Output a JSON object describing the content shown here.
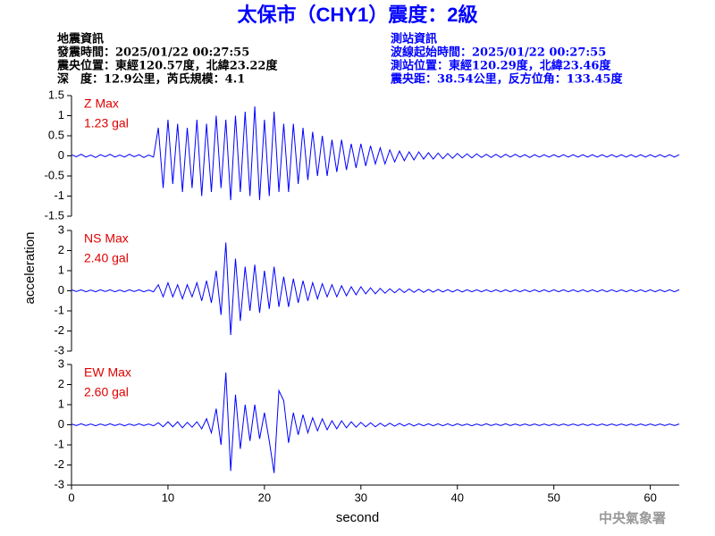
{
  "title": "太保市（CHY1）震度：2級",
  "header": {
    "left": [
      "地震資訊",
      "發震時間：2025/01/22 00:27:55",
      "震央位置：東經120.57度，北緯23.22度",
      "深　度：12.9公里，芮氏規模：4.1"
    ],
    "right": [
      "測站資訊",
      "波線起始時間：2025/01/22 00:27:55",
      "測站位置：東經120.29度，北緯23.46度",
      "震央距：38.54公里，反方位角：133.45度"
    ]
  },
  "y_label": "acceleration",
  "x_label": "second",
  "footer": "中央氣象署",
  "chart_data": [
    {
      "type": "line",
      "annotations": [
        "Z Max",
        "1.23 gal"
      ],
      "xlim": [
        0,
        63
      ],
      "ylim": [
        -1.5,
        1.5
      ],
      "yticks": [
        -1.5,
        -1,
        -0.5,
        0,
        0.5,
        1,
        1.5
      ],
      "x": [
        0,
        0.5,
        1,
        1.5,
        2,
        2.5,
        3,
        3.5,
        4,
        4.5,
        5,
        5.5,
        6,
        6.5,
        7,
        7.5,
        8,
        8.5,
        9,
        9.5,
        10,
        10.5,
        11,
        11.5,
        12,
        12.5,
        13,
        13.5,
        14,
        14.5,
        15,
        15.5,
        16,
        16.5,
        17,
        17.5,
        18,
        18.5,
        19,
        19.5,
        20,
        20.5,
        21,
        21.5,
        22,
        22.5,
        23,
        23.5,
        24,
        24.5,
        25,
        25.5,
        26,
        26.5,
        27,
        27.5,
        28,
        28.5,
        29,
        29.5,
        30,
        30.5,
        31,
        31.5,
        32,
        32.5,
        33,
        33.5,
        34,
        34.5,
        35,
        35.5,
        36,
        36.5,
        37,
        37.5,
        38,
        38.5,
        39,
        39.5,
        40,
        40.5,
        41,
        41.5,
        42,
        42.5,
        43,
        43.5,
        44,
        44.5,
        45,
        45.5,
        46,
        46.5,
        47,
        47.5,
        48,
        48.5,
        49,
        49.5,
        50,
        50.5,
        51,
        51.5,
        52,
        52.5,
        53,
        53.5,
        54,
        54.5,
        55,
        55.5,
        56,
        56.5,
        57,
        57.5,
        58,
        58.5,
        59,
        59.5,
        60,
        60.5,
        61,
        61.5,
        62,
        62.5,
        63
      ],
      "series": [
        {
          "color": "#0000ff",
          "values": [
            0.03,
            -0.02,
            0.04,
            -0.03,
            0.02,
            -0.04,
            0.03,
            -0.02,
            0.04,
            -0.03,
            0.02,
            -0.03,
            0.04,
            -0.02,
            0.03,
            -0.04,
            0.02,
            -0.03,
            0.7,
            -0.8,
            0.9,
            -0.7,
            0.8,
            -0.9,
            0.7,
            -0.8,
            0.9,
            -1.0,
            0.8,
            -0.9,
            1.0,
            -0.8,
            0.9,
            -1.1,
            1.0,
            -0.9,
            1.1,
            -1.0,
            1.23,
            -1.1,
            0.9,
            -1.0,
            1.1,
            -0.9,
            0.8,
            -0.9,
            0.8,
            -0.7,
            0.7,
            -0.6,
            0.6,
            -0.5,
            0.5,
            -0.5,
            0.4,
            -0.4,
            0.4,
            -0.35,
            0.3,
            -0.3,
            0.3,
            -0.25,
            0.25,
            -0.2,
            0.2,
            -0.2,
            0.15,
            -0.15,
            0.12,
            -0.12,
            0.1,
            -0.1,
            0.1,
            -0.08,
            0.08,
            -0.08,
            0.07,
            -0.07,
            0.06,
            -0.06,
            0.06,
            -0.05,
            0.05,
            -0.05,
            0.05,
            -0.04,
            0.04,
            -0.04,
            0.04,
            -0.04,
            0.04,
            -0.03,
            0.04,
            -0.03,
            0.03,
            -0.04,
            0.03,
            -0.03,
            0.03,
            -0.03,
            0.03,
            -0.03,
            0.03,
            -0.03,
            0.03,
            -0.03,
            0.03,
            -0.03,
            0.03,
            -0.03,
            0.03,
            -0.03,
            0.03,
            -0.03,
            0.03,
            -0.03,
            0.03,
            -0.03,
            0.03,
            -0.03,
            0.03,
            -0.03,
            0.03,
            -0.03,
            0.03,
            -0.03,
            0.03
          ]
        }
      ]
    },
    {
      "type": "line",
      "annotations": [
        "NS Max",
        "2.40 gal"
      ],
      "xlim": [
        0,
        63
      ],
      "ylim": [
        -3,
        3
      ],
      "yticks": [
        -3,
        -2,
        -1,
        0,
        1,
        2,
        3
      ],
      "x": [
        0,
        0.5,
        1,
        1.5,
        2,
        2.5,
        3,
        3.5,
        4,
        4.5,
        5,
        5.5,
        6,
        6.5,
        7,
        7.5,
        8,
        8.5,
        9,
        9.5,
        10,
        10.5,
        11,
        11.5,
        12,
        12.5,
        13,
        13.5,
        14,
        14.5,
        15,
        15.5,
        16,
        16.5,
        17,
        17.5,
        18,
        18.5,
        19,
        19.5,
        20,
        20.5,
        21,
        21.5,
        22,
        22.5,
        23,
        23.5,
        24,
        24.5,
        25,
        25.5,
        26,
        26.5,
        27,
        27.5,
        28,
        28.5,
        29,
        29.5,
        30,
        30.5,
        31,
        31.5,
        32,
        32.5,
        33,
        33.5,
        34,
        34.5,
        35,
        35.5,
        36,
        36.5,
        37,
        37.5,
        38,
        38.5,
        39,
        39.5,
        40,
        40.5,
        41,
        41.5,
        42,
        42.5,
        43,
        43.5,
        44,
        44.5,
        45,
        45.5,
        46,
        46.5,
        47,
        47.5,
        48,
        48.5,
        49,
        49.5,
        50,
        50.5,
        51,
        51.5,
        52,
        52.5,
        53,
        53.5,
        54,
        54.5,
        55,
        55.5,
        56,
        56.5,
        57,
        57.5,
        58,
        58.5,
        59,
        59.5,
        60,
        60.5,
        61,
        61.5,
        62,
        62.5,
        63
      ],
      "series": [
        {
          "color": "#0000ff",
          "values": [
            0.05,
            -0.04,
            0.05,
            -0.05,
            0.04,
            -0.05,
            0.05,
            -0.04,
            0.05,
            -0.05,
            0.04,
            -0.05,
            0.05,
            -0.04,
            0.05,
            -0.05,
            0.04,
            -0.05,
            0.3,
            -0.3,
            0.4,
            -0.3,
            0.3,
            -0.4,
            0.3,
            -0.3,
            0.4,
            -0.5,
            0.5,
            -0.6,
            1.0,
            -1.2,
            2.4,
            -2.2,
            1.6,
            -1.5,
            1.2,
            -1.0,
            1.3,
            -1.1,
            1.0,
            -0.9,
            1.2,
            -0.8,
            0.7,
            -0.8,
            0.6,
            -0.6,
            0.5,
            -0.5,
            0.4,
            -0.4,
            0.35,
            -0.3,
            0.3,
            -0.3,
            0.25,
            -0.25,
            0.2,
            -0.2,
            0.2,
            -0.15,
            0.15,
            -0.15,
            0.12,
            -0.12,
            0.1,
            -0.1,
            0.1,
            -0.09,
            0.09,
            -0.08,
            0.08,
            -0.08,
            0.07,
            -0.07,
            0.07,
            -0.06,
            0.06,
            -0.06,
            0.06,
            -0.06,
            0.05,
            -0.05,
            0.05,
            -0.05,
            0.05,
            -0.05,
            0.05,
            -0.05,
            0.05,
            -0.05,
            0.05,
            -0.05,
            0.05,
            -0.05,
            0.05,
            -0.05,
            0.05,
            -0.05,
            0.05,
            -0.05,
            0.05,
            -0.05,
            0.05,
            -0.05,
            0.05,
            -0.05,
            0.05,
            -0.05,
            0.05,
            -0.05,
            0.05,
            -0.05,
            0.05,
            -0.05,
            0.05,
            -0.05,
            0.05,
            -0.05,
            0.05,
            -0.05,
            0.05,
            -0.05,
            0.05,
            -0.05,
            0.05
          ]
        }
      ]
    },
    {
      "type": "line",
      "annotations": [
        "EW Max",
        "2.60 gal"
      ],
      "xlim": [
        0,
        63
      ],
      "ylim": [
        -3,
        3
      ],
      "yticks": [
        -3,
        -2,
        -1,
        0,
        1,
        2,
        3
      ],
      "xticks": [
        0,
        10,
        20,
        30,
        40,
        50,
        60
      ],
      "x": [
        0,
        0.5,
        1,
        1.5,
        2,
        2.5,
        3,
        3.5,
        4,
        4.5,
        5,
        5.5,
        6,
        6.5,
        7,
        7.5,
        8,
        8.5,
        9,
        9.5,
        10,
        10.5,
        11,
        11.5,
        12,
        12.5,
        13,
        13.5,
        14,
        14.5,
        15,
        15.5,
        16,
        16.5,
        17,
        17.5,
        18,
        18.5,
        19,
        19.5,
        20,
        20.5,
        21,
        21.5,
        22,
        22.5,
        23,
        23.5,
        24,
        24.5,
        25,
        25.5,
        26,
        26.5,
        27,
        27.5,
        28,
        28.5,
        29,
        29.5,
        30,
        30.5,
        31,
        31.5,
        32,
        32.5,
        33,
        33.5,
        34,
        34.5,
        35,
        35.5,
        36,
        36.5,
        37,
        37.5,
        38,
        38.5,
        39,
        39.5,
        40,
        40.5,
        41,
        41.5,
        42,
        42.5,
        43,
        43.5,
        44,
        44.5,
        45,
        45.5,
        46,
        46.5,
        47,
        47.5,
        48,
        48.5,
        49,
        49.5,
        50,
        50.5,
        51,
        51.5,
        52,
        52.5,
        53,
        53.5,
        54,
        54.5,
        55,
        55.5,
        56,
        56.5,
        57,
        57.5,
        58,
        58.5,
        59,
        59.5,
        60,
        60.5,
        61,
        61.5,
        62,
        62.5,
        63
      ],
      "series": [
        {
          "color": "#0000ff",
          "values": [
            0.04,
            -0.04,
            0.05,
            -0.04,
            0.04,
            -0.05,
            0.04,
            -0.04,
            0.05,
            -0.04,
            0.04,
            -0.05,
            0.04,
            -0.04,
            0.05,
            -0.04,
            0.04,
            -0.05,
            0.1,
            -0.1,
            0.15,
            -0.1,
            0.15,
            -0.15,
            0.12,
            -0.12,
            0.15,
            -0.2,
            0.3,
            -0.4,
            0.8,
            -1.0,
            2.6,
            -2.3,
            1.5,
            -1.2,
            1.0,
            -0.8,
            1.0,
            -0.7,
            0.6,
            -0.8,
            -2.4,
            1.7,
            1.2,
            -0.9,
            0.6,
            -0.5,
            0.5,
            -0.4,
            0.35,
            -0.3,
            0.3,
            -0.25,
            0.2,
            -0.2,
            0.2,
            -0.15,
            0.15,
            -0.12,
            0.12,
            -0.1,
            0.1,
            -0.1,
            0.08,
            -0.08,
            0.08,
            -0.07,
            0.07,
            -0.06,
            0.06,
            -0.06,
            0.05,
            -0.05,
            0.05,
            -0.05,
            0.05,
            -0.05,
            0.05,
            -0.05,
            0.05,
            -0.04,
            0.04,
            -0.05,
            0.04,
            -0.04,
            0.05,
            -0.04,
            0.04,
            -0.04,
            0.05,
            -0.04,
            0.04,
            -0.04,
            0.04,
            -0.04,
            0.04,
            -0.04,
            0.04,
            -0.04,
            0.04,
            -0.04,
            0.04,
            -0.04,
            0.04,
            -0.04,
            0.04,
            -0.04,
            0.04,
            -0.04,
            0.04,
            -0.04,
            0.04,
            -0.04,
            0.04,
            -0.04,
            0.04,
            -0.04,
            0.04,
            -0.04,
            0.04,
            -0.04,
            0.04,
            -0.04,
            0.04,
            -0.04,
            0.04
          ]
        }
      ]
    }
  ]
}
